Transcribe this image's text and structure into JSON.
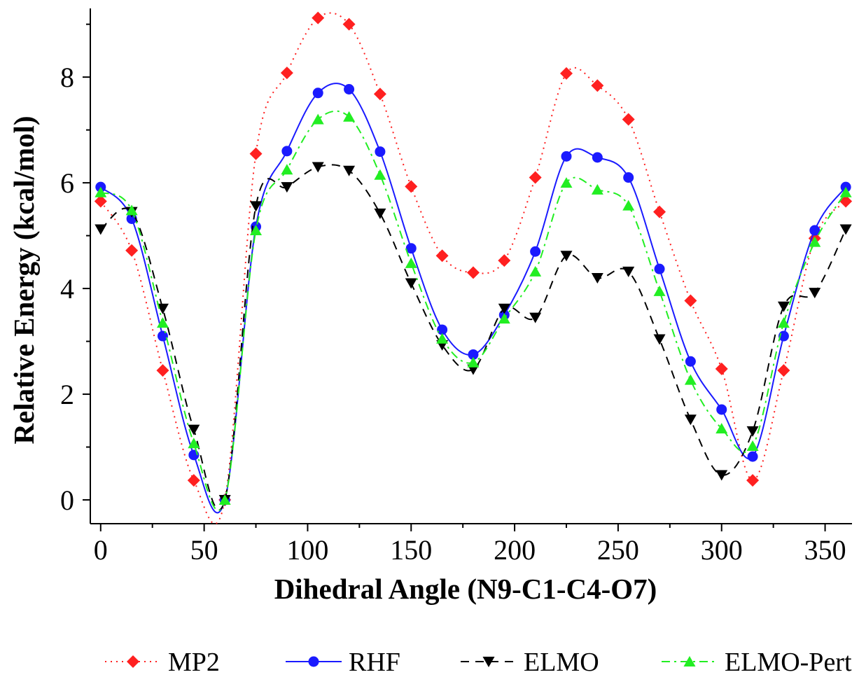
{
  "chart_data": {
    "type": "line",
    "xlabel": "Dihedral Angle (N9-C1-C4-O7)",
    "ylabel": "Relative Energy (kcal/mol)",
    "xlim": [
      -5,
      363
    ],
    "ylim": [
      -0.45,
      9.3
    ],
    "x_ticks": [
      0,
      50,
      100,
      150,
      200,
      250,
      300,
      350
    ],
    "y_ticks": [
      0,
      2,
      4,
      6,
      8
    ],
    "legend_position": "bottom",
    "x": [
      0,
      15,
      30,
      45,
      60,
      75,
      90,
      105,
      120,
      135,
      150,
      165,
      180,
      195,
      210,
      225,
      240,
      255,
      270,
      285,
      300,
      315,
      330,
      345,
      360
    ],
    "series": [
      {
        "name": "MP2",
        "color": "#ff2020",
        "marker": "diamond",
        "line": "dotted",
        "values": [
          5.65,
          4.72,
          2.45,
          0.37,
          0.0,
          6.55,
          8.08,
          9.12,
          9.0,
          7.68,
          5.93,
          4.62,
          4.3,
          4.53,
          6.1,
          8.07,
          7.84,
          7.2,
          5.45,
          3.77,
          2.48,
          0.37,
          2.45,
          4.95,
          5.65
        ]
      },
      {
        "name": "RHF",
        "color": "#1a1aff",
        "marker": "circle",
        "line": "solid",
        "values": [
          5.92,
          5.32,
          3.1,
          0.85,
          0.0,
          5.17,
          6.6,
          7.7,
          7.77,
          6.59,
          4.76,
          3.22,
          2.75,
          3.5,
          4.7,
          6.5,
          6.48,
          6.1,
          4.37,
          2.62,
          1.71,
          0.82,
          3.1,
          5.1,
          5.92
        ]
      },
      {
        "name": "ELMO",
        "color": "#000000",
        "marker": "triangle-down",
        "line": "dashed",
        "values": [
          5.12,
          5.45,
          3.62,
          1.33,
          0.0,
          5.56,
          5.92,
          6.3,
          6.23,
          5.42,
          4.1,
          2.93,
          2.47,
          3.62,
          3.45,
          4.62,
          4.2,
          4.32,
          3.04,
          1.52,
          0.47,
          1.3,
          3.66,
          3.92,
          5.12
        ]
      },
      {
        "name": "ELMO-Pert",
        "color": "#22ee22",
        "marker": "triangle-up",
        "line": "dashdot",
        "values": [
          5.82,
          5.48,
          3.35,
          1.07,
          0.0,
          5.1,
          6.25,
          7.2,
          7.25,
          6.15,
          4.48,
          3.05,
          2.6,
          3.43,
          4.32,
          6.0,
          5.87,
          5.57,
          3.95,
          2.27,
          1.35,
          1.02,
          3.35,
          4.88,
          5.82
        ]
      }
    ]
  }
}
